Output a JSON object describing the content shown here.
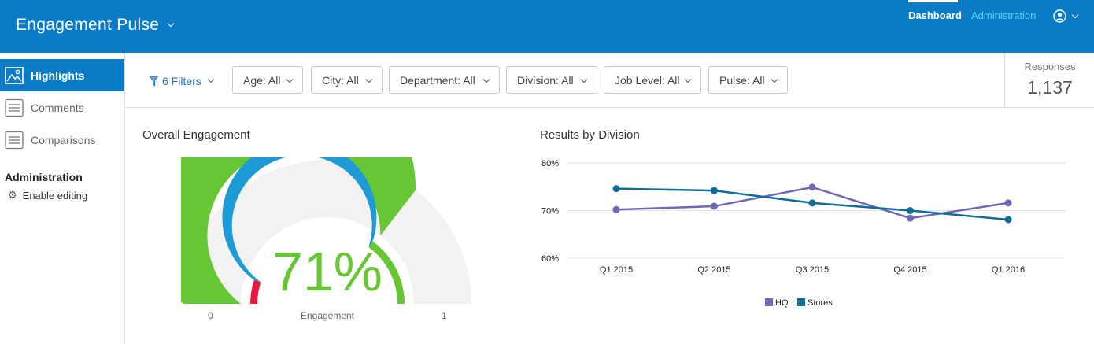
{
  "header": {
    "app_title": "Engagement Pulse",
    "nav": {
      "dashboard": "Dashboard",
      "administration": "Administration"
    },
    "user_icon": "user-circle-icon"
  },
  "sidebar": {
    "items": [
      {
        "label": "Highlights",
        "icon": "image-icon",
        "active": true
      },
      {
        "label": "Comments",
        "icon": "list-icon",
        "active": false
      },
      {
        "label": "Comparisons",
        "icon": "list-icon",
        "active": false
      }
    ],
    "admin_title": "Administration",
    "enable_editing": "Enable editing"
  },
  "filterbar": {
    "filters_label": "6 Filters",
    "filters": [
      {
        "label": "Age: All"
      },
      {
        "label": "City: All"
      },
      {
        "label": "Department: All"
      },
      {
        "label": "Division: All"
      },
      {
        "label": "Job Level: All"
      },
      {
        "label": "Pulse: All"
      }
    ],
    "responses_label": "Responses",
    "responses_value": "1,137"
  },
  "colors": {
    "header_blue": "#0a7bc6",
    "green": "#66c633",
    "blue": "#1e9ad6",
    "red": "#e8193c",
    "hq": "#7566b5",
    "stores": "#0e6e99"
  },
  "chart_data": [
    {
      "type": "gauge",
      "title": "Overall Engagement",
      "value": 0.71,
      "value_label": "71%",
      "min_label": "0",
      "max_label": "1",
      "label": "Engagement",
      "range": [
        0,
        1
      ],
      "bands": [
        {
          "from": 0,
          "to": 0.1,
          "color": "#e8193c"
        },
        {
          "from": 0.1,
          "to": 0.7,
          "color": "#1e9ad6"
        },
        {
          "from": 0.7,
          "to": 1,
          "color": "#66c633"
        }
      ]
    },
    {
      "type": "line",
      "title": "Results by Division",
      "categories": [
        "Q1 2015",
        "Q2 2015",
        "Q3 2015",
        "Q4 2015",
        "Q1 2016"
      ],
      "series": [
        {
          "name": "HQ",
          "values": [
            70.2,
            70.9,
            74.9,
            68.4,
            71.6
          ],
          "color": "#7566b5"
        },
        {
          "name": "Stores",
          "values": [
            74.6,
            74.2,
            71.6,
            70.0,
            68.1
          ],
          "color": "#0e6e99"
        }
      ],
      "ylim": [
        60,
        80
      ],
      "yticks": [
        60,
        70,
        80
      ],
      "ytick_labels": [
        "60%",
        "70%",
        "80%"
      ],
      "grid": true,
      "legend": "bottom"
    }
  ]
}
